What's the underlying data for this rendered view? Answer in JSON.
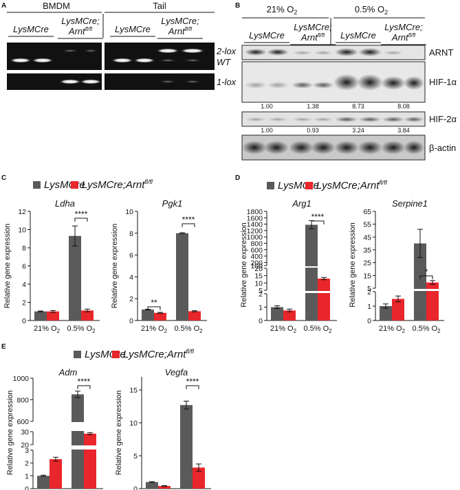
{
  "panel_labels": {
    "A": "A",
    "B": "B",
    "C": "C",
    "D": "D",
    "E": "E"
  },
  "gel": {
    "group_left": "BMDM",
    "group_right": "Tail",
    "lanes": [
      {
        "line1": "LysMCre",
        "line2": ""
      },
      {
        "line1": "LysMCre;",
        "line2": "Arnt",
        "sup": "fl/fl"
      },
      {
        "line1": "LysMCre",
        "line2": ""
      },
      {
        "line1": "LysMCre;",
        "line2": "Arnt",
        "sup": "fl/fl"
      }
    ],
    "band_labels": {
      "two_lox": "2-lox",
      "wt": "WT",
      "one_lox": "1-lox"
    }
  },
  "western": {
    "cond_21": {
      "prefix": "21% O",
      "sub": "2"
    },
    "cond_05": {
      "prefix": "0.5% O",
      "sub": "2"
    },
    "lanes": [
      {
        "line1": "LysMCre",
        "line2": ""
      },
      {
        "line1": "LysMCre;",
        "line2": "Arnt",
        "sup": "fl/fl"
      },
      {
        "line1": "LysMCre",
        "line2": ""
      },
      {
        "line1": "LysMCre;",
        "line2": "Arnt",
        "sup": "fl/fl"
      }
    ],
    "blots": [
      "ARNT",
      "HIF-1α",
      "HIF-2α",
      "β-actin"
    ],
    "hif1a_quant": [
      "1.00",
      "1.38",
      "8.73",
      "8.08"
    ],
    "hif2a_quant": [
      "1.00",
      "0.93",
      "3.24",
      "3.84"
    ]
  },
  "legend": {
    "series_a": "LysMCre",
    "series_b_main": "LysMCre;Arnt",
    "series_b_sup": "fl/fl",
    "color_a": "#5a5a5a",
    "color_b": "#e8262b"
  },
  "x_tick_21": {
    "prefix": "21% O",
    "sub": "2"
  },
  "x_tick_05": {
    "prefix": "0.5% O",
    "sub": "2"
  },
  "ylabel": "Relative gene expression",
  "chart_data": [
    {
      "panel": "C",
      "type": "bar",
      "title": "Ldha",
      "categories": [
        "21% O2",
        "0.5% O2"
      ],
      "ylabel": "Relative gene expression",
      "ylim": [
        0,
        12
      ],
      "yticks": [
        "0",
        "2",
        "4",
        "6",
        "8",
        "10",
        "12"
      ],
      "series": [
        {
          "name": "LysMCre",
          "values": [
            1.0,
            9.3
          ],
          "errors": [
            0.05,
            1.1
          ]
        },
        {
          "name": "LysMCre;Arnt fl/fl",
          "values": [
            1.0,
            1.1
          ],
          "errors": [
            0.1,
            0.15
          ]
        }
      ],
      "significance": [
        {
          "category": "0.5% O2",
          "label": "****"
        }
      ]
    },
    {
      "panel": "C",
      "type": "bar",
      "title": "Pgk1",
      "categories": [
        "21% O2",
        "0.5% O2"
      ],
      "ylabel": "Relative gene expression",
      "ylim": [
        0,
        10
      ],
      "yticks": [
        "0",
        "2",
        "4",
        "6",
        "8",
        "10"
      ],
      "series": [
        {
          "name": "LysMCre",
          "values": [
            1.0,
            8.0
          ],
          "errors": [
            0.03,
            0.05
          ]
        },
        {
          "name": "LysMCre;Arnt fl/fl",
          "values": [
            0.7,
            0.85
          ],
          "errors": [
            0.05,
            0.05
          ]
        }
      ],
      "significance": [
        {
          "category": "21% O2",
          "label": "**"
        },
        {
          "category": "0.5% O2",
          "label": "****"
        }
      ]
    },
    {
      "panel": "D",
      "type": "bar",
      "title": "Arg1",
      "categories": [
        "21% O2",
        "0.5% O2"
      ],
      "ylabel": "Relative gene expression",
      "broken_axis": true,
      "yticks": [
        "0",
        "1",
        "2",
        "5",
        "10",
        "15",
        "20",
        "100",
        "200",
        "400",
        "600",
        "800",
        "1000",
        "1200",
        "1400",
        "1600",
        "1800"
      ],
      "series": [
        {
          "name": "LysMCre",
          "values": [
            1.0,
            1380
          ],
          "errors": [
            0.1,
            130
          ]
        },
        {
          "name": "LysMCre;Arnt fl/fl",
          "values": [
            0.75,
            13
          ],
          "errors": [
            0.1,
            0.8
          ]
        }
      ],
      "significance": [
        {
          "category": "0.5% O2",
          "label": "****"
        }
      ]
    },
    {
      "panel": "D",
      "type": "bar",
      "title": "Serpine1",
      "categories": [
        "21% O2",
        "0.5% O2"
      ],
      "ylabel": "Relative gene expression",
      "broken_axis": true,
      "yticks": [
        "0",
        "1",
        "2",
        "5",
        "15",
        "25",
        "35",
        "45",
        "55",
        "65"
      ],
      "series": [
        {
          "name": "LysMCre",
          "values": [
            1.0,
            40
          ],
          "errors": [
            0.15,
            11
          ]
        },
        {
          "name": "LysMCre;Arnt fl/fl",
          "values": [
            1.5,
            9.5
          ],
          "errors": [
            0.2,
            1.5
          ]
        }
      ],
      "significance": [
        {
          "category": "0.5% O2",
          "label": "*"
        }
      ]
    },
    {
      "panel": "E",
      "type": "bar",
      "title": "Adm",
      "categories": [
        "21% O2",
        "0.5% O2"
      ],
      "ylabel": "Relative gene expression",
      "broken_axis": true,
      "yticks": [
        "0",
        "1",
        "2",
        "3",
        "20",
        "30",
        "600",
        "800",
        "1000"
      ],
      "series": [
        {
          "name": "LysMCre",
          "values": [
            1.0,
            850
          ],
          "errors": [
            0.05,
            30
          ]
        },
        {
          "name": "LysMCre;Arnt fl/fl",
          "values": [
            2.3,
            28.5
          ],
          "errors": [
            0.15,
            0.8
          ]
        }
      ],
      "significance": [
        {
          "category": "0.5% O2",
          "label": "****"
        }
      ]
    },
    {
      "panel": "E",
      "type": "bar",
      "title": "Vegfa",
      "categories": [
        "21% O2",
        "0.5% O2"
      ],
      "ylabel": "Relative gene expression",
      "ylim": [
        0,
        17
      ],
      "yticks": [
        "0",
        "5",
        "10",
        "15"
      ],
      "series": [
        {
          "name": "LysMCre",
          "values": [
            1.0,
            12.7
          ],
          "errors": [
            0.05,
            0.6
          ]
        },
        {
          "name": "LysMCre;Arnt fl/fl",
          "values": [
            0.4,
            3.2
          ],
          "errors": [
            0.05,
            0.55
          ]
        }
      ],
      "significance": [
        {
          "category": "0.5% O2",
          "label": "****"
        }
      ]
    }
  ]
}
